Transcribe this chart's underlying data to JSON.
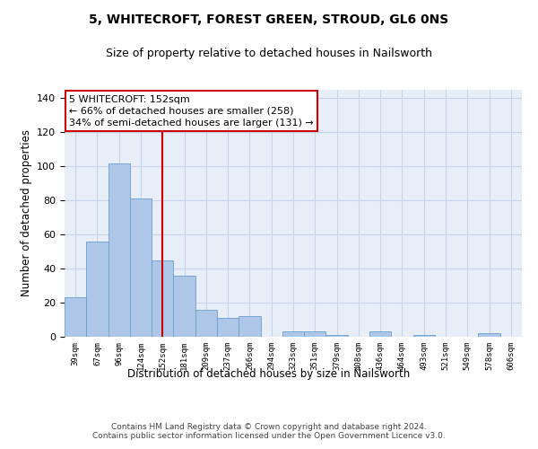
{
  "title": "5, WHITECROFT, FOREST GREEN, STROUD, GL6 0NS",
  "subtitle": "Size of property relative to detached houses in Nailsworth",
  "xlabel": "Distribution of detached houses by size in Nailsworth",
  "ylabel": "Number of detached properties",
  "categories": [
    "39sqm",
    "67sqm",
    "96sqm",
    "124sqm",
    "152sqm",
    "181sqm",
    "209sqm",
    "237sqm",
    "266sqm",
    "294sqm",
    "323sqm",
    "351sqm",
    "379sqm",
    "408sqm",
    "436sqm",
    "464sqm",
    "493sqm",
    "521sqm",
    "549sqm",
    "578sqm",
    "606sqm"
  ],
  "values": [
    23,
    56,
    102,
    81,
    45,
    36,
    16,
    11,
    12,
    0,
    3,
    3,
    1,
    0,
    3,
    0,
    1,
    0,
    0,
    2,
    0
  ],
  "bar_color": "#aec6e8",
  "bar_edge_color": "#6a9fd0",
  "vline_x": 4,
  "vline_color": "#cc0000",
  "annotation_line1": "5 WHITECROFT: 152sqm",
  "annotation_line2": "← 66% of detached houses are smaller (258)",
  "annotation_line3": "34% of semi-detached houses are larger (131) →",
  "annotation_box_color": "#ffffff",
  "annotation_box_edge": "#cc0000",
  "ylim": [
    0,
    145
  ],
  "yticks": [
    0,
    20,
    40,
    60,
    80,
    100,
    120,
    140
  ],
  "grid_color": "#c8d4e8",
  "background_color": "#e8eef8",
  "footer": "Contains HM Land Registry data © Crown copyright and database right 2024.\nContains public sector information licensed under the Open Government Licence v3.0.",
  "title_fontsize": 10,
  "subtitle_fontsize": 9,
  "xlabel_fontsize": 8.5,
  "ylabel_fontsize": 8.5,
  "annotation_fontsize": 8,
  "footer_fontsize": 6.5
}
